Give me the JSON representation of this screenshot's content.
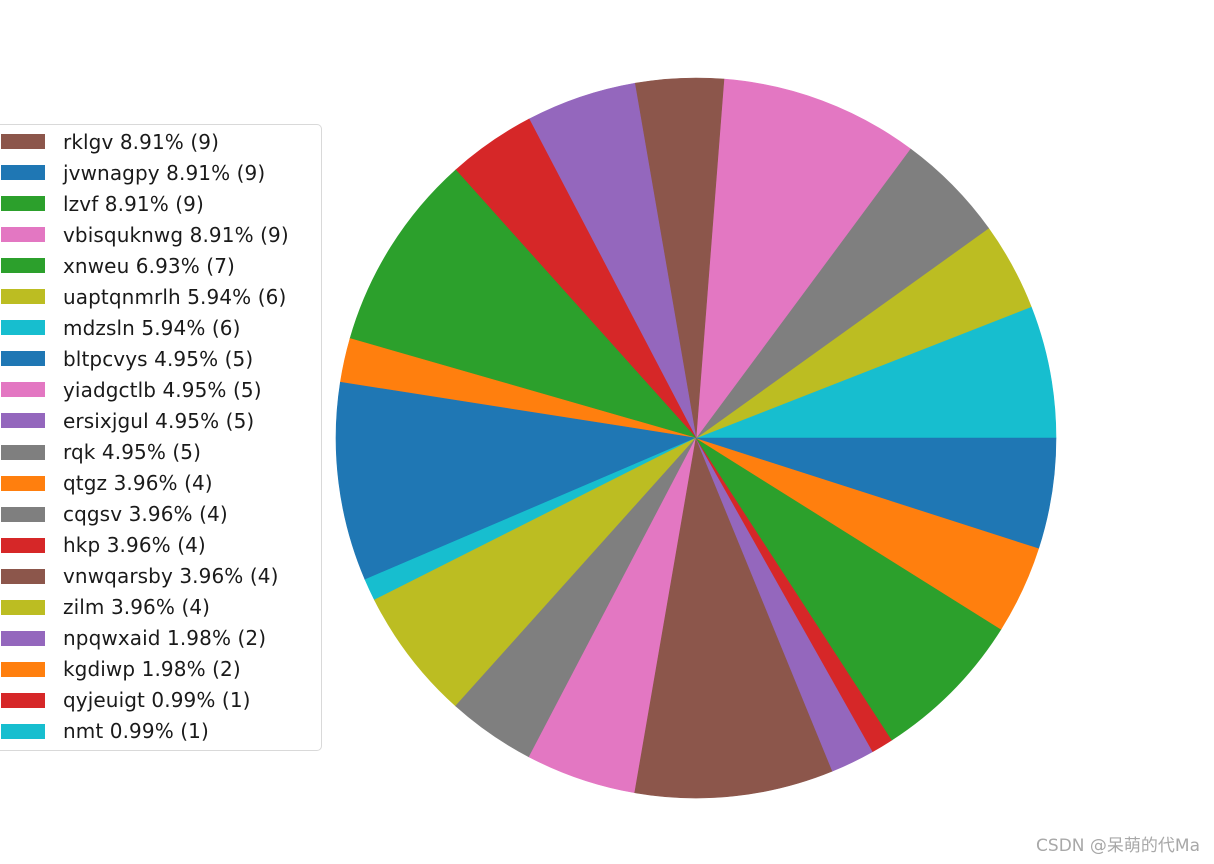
{
  "chart_data": {
    "type": "pie",
    "title": "",
    "start_angle_deg": 0,
    "direction": "counterclockwise",
    "legend_placement": "left",
    "slices": [
      {
        "label": "rklgv",
        "value": 9,
        "percent": 8.91,
        "legend_text": "rklgv 8.91% (9)",
        "color": "#8c564b"
      },
      {
        "label": "jvwnagpy",
        "value": 9,
        "percent": 8.91,
        "legend_text": "jvwnagpy 8.91% (9)",
        "color": "#1f77b4"
      },
      {
        "label": "lzvf",
        "value": 9,
        "percent": 8.91,
        "legend_text": "lzvf 8.91% (9)",
        "color": "#2ca02c"
      },
      {
        "label": "vbisquknwg",
        "value": 9,
        "percent": 8.91,
        "legend_text": "vbisquknwg 8.91% (9)",
        "color": "#e377c2"
      },
      {
        "label": "xnweu",
        "value": 7,
        "percent": 6.93,
        "legend_text": "xnweu 6.93% (7)",
        "color": "#2ca02c"
      },
      {
        "label": "uaptqnmrlh",
        "value": 6,
        "percent": 5.94,
        "legend_text": "uaptqnmrlh 5.94% (6)",
        "color": "#bcbd22"
      },
      {
        "label": "mdzsln",
        "value": 6,
        "percent": 5.94,
        "legend_text": "mdzsln 5.94% (6)",
        "color": "#17becf"
      },
      {
        "label": "bltpcvys",
        "value": 5,
        "percent": 4.95,
        "legend_text": "bltpcvys 4.95% (5)",
        "color": "#1f77b4"
      },
      {
        "label": "yiadgctlb",
        "value": 5,
        "percent": 4.95,
        "legend_text": "yiadgctlb 4.95% (5)",
        "color": "#e377c2"
      },
      {
        "label": "ersixjgul",
        "value": 5,
        "percent": 4.95,
        "legend_text": "ersixjgul 4.95% (5)",
        "color": "#9467bd"
      },
      {
        "label": "rqk",
        "value": 5,
        "percent": 4.95,
        "legend_text": "rqk 4.95% (5)",
        "color": "#7f7f7f"
      },
      {
        "label": "qtgz",
        "value": 4,
        "percent": 3.96,
        "legend_text": "qtgz 3.96% (4)",
        "color": "#ff7f0e"
      },
      {
        "label": "cqgsv",
        "value": 4,
        "percent": 3.96,
        "legend_text": "cqgsv 3.96% (4)",
        "color": "#7f7f7f"
      },
      {
        "label": "hkp",
        "value": 4,
        "percent": 3.96,
        "legend_text": "hkp 3.96% (4)",
        "color": "#d62728"
      },
      {
        "label": "vnwqarsby",
        "value": 4,
        "percent": 3.96,
        "legend_text": "vnwqarsby 3.96% (4)",
        "color": "#8c564b"
      },
      {
        "label": "zilm",
        "value": 4,
        "percent": 3.96,
        "legend_text": "zilm 3.96% (4)",
        "color": "#bcbd22"
      },
      {
        "label": "npqwxaid",
        "value": 2,
        "percent": 1.98,
        "legend_text": "npqwxaid 1.98% (2)",
        "color": "#9467bd"
      },
      {
        "label": "kgdiwp",
        "value": 2,
        "percent": 1.98,
        "legend_text": "kgdiwp 1.98% (2)",
        "color": "#ff7f0e"
      },
      {
        "label": "qyjeuigt",
        "value": 1,
        "percent": 0.99,
        "legend_text": "qyjeuigt 0.99% (1)",
        "color": "#d62728"
      },
      {
        "label": "nmt",
        "value": 1,
        "percent": 0.99,
        "legend_text": "nmt 0.99% (1)",
        "color": "#17becf"
      }
    ],
    "drawn_order": [
      {
        "value": 6,
        "color": "#17becf"
      },
      {
        "value": 4,
        "color": "#bcbd22"
      },
      {
        "value": 5,
        "color": "#7f7f7f"
      },
      {
        "value": 9,
        "color": "#e377c2"
      },
      {
        "value": 4,
        "color": "#8c564b"
      },
      {
        "value": 5,
        "color": "#9467bd"
      },
      {
        "value": 4,
        "color": "#d62728"
      },
      {
        "value": 9,
        "color": "#2ca02c"
      },
      {
        "value": 2,
        "color": "#ff7f0e"
      },
      {
        "value": 9,
        "color": "#1f77b4"
      },
      {
        "value": 1,
        "color": "#17becf"
      },
      {
        "value": 6,
        "color": "#bcbd22"
      },
      {
        "value": 4,
        "color": "#7f7f7f"
      },
      {
        "value": 5,
        "color": "#e377c2"
      },
      {
        "value": 9,
        "color": "#8c564b"
      },
      {
        "value": 2,
        "color": "#9467bd"
      },
      {
        "value": 1,
        "color": "#d62728"
      },
      {
        "value": 7,
        "color": "#2ca02c"
      },
      {
        "value": 4,
        "color": "#ff7f0e"
      },
      {
        "value": 5,
        "color": "#1f77b4"
      }
    ]
  },
  "watermark": "CSDN @呆萌的代Ma"
}
